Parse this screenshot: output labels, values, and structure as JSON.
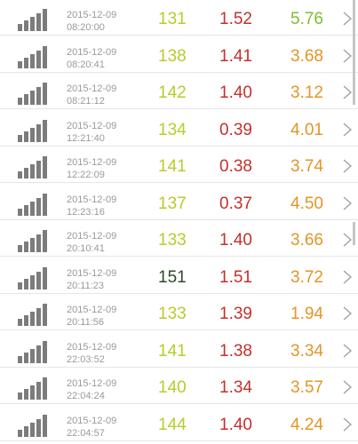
{
  "colors": {
    "lime": "#b8cc2a",
    "dark_green": "#2f4a2a",
    "red": "#c4302b",
    "orange": "#e39525",
    "green": "#7cbf2f",
    "bars": "#7c7c7c",
    "divider": "#e6e6e6"
  },
  "rows": [
    {
      "date": "2015-12-09",
      "time": "08:20:00",
      "v1": "131",
      "v1_color": "lime",
      "v2": "1.52",
      "v2_color": "red",
      "v3": "5.76",
      "v3_color": "green"
    },
    {
      "date": "2015-12-09",
      "time": "08:20:41",
      "v1": "138",
      "v1_color": "lime",
      "v2": "1.41",
      "v2_color": "red",
      "v3": "3.68",
      "v3_color": "orange"
    },
    {
      "date": "2015-12-09",
      "time": "08:21:12",
      "v1": "142",
      "v1_color": "lime",
      "v2": "1.40",
      "v2_color": "red",
      "v3": "3.12",
      "v3_color": "orange"
    },
    {
      "date": "2015-12-09",
      "time": "12:21:40",
      "v1": "134",
      "v1_color": "lime",
      "v2": "0.39",
      "v2_color": "red",
      "v3": "4.01",
      "v3_color": "orange"
    },
    {
      "date": "2015-12-09",
      "time": "12:22:09",
      "v1": "141",
      "v1_color": "lime",
      "v2": "0.38",
      "v2_color": "red",
      "v3": "3.74",
      "v3_color": "orange"
    },
    {
      "date": "2015-12-09",
      "time": "12:23:16",
      "v1": "137",
      "v1_color": "lime",
      "v2": "0.37",
      "v2_color": "red",
      "v3": "4.50",
      "v3_color": "orange"
    },
    {
      "date": "2015-12-09",
      "time": "20:10:41",
      "v1": "133",
      "v1_color": "lime",
      "v2": "1.40",
      "v2_color": "red",
      "v3": "3.66",
      "v3_color": "orange"
    },
    {
      "date": "2015-12-09",
      "time": "20:11:23",
      "v1": "151",
      "v1_color": "dark_green",
      "v2": "1.51",
      "v2_color": "red",
      "v3": "3.72",
      "v3_color": "orange"
    },
    {
      "date": "2015-12-09",
      "time": "20:11:56",
      "v1": "133",
      "v1_color": "lime",
      "v2": "1.39",
      "v2_color": "red",
      "v3": "1.94",
      "v3_color": "orange"
    },
    {
      "date": "2015-12-09",
      "time": "22:03:52",
      "v1": "141",
      "v1_color": "lime",
      "v2": "1.38",
      "v2_color": "red",
      "v3": "3.34",
      "v3_color": "orange"
    },
    {
      "date": "2015-12-09",
      "time": "22:04:24",
      "v1": "140",
      "v1_color": "lime",
      "v2": "1.34",
      "v2_color": "red",
      "v3": "3.57",
      "v3_color": "orange"
    },
    {
      "date": "2015-12-09",
      "time": "22:04:57",
      "v1": "144",
      "v1_color": "lime",
      "v2": "1.40",
      "v2_color": "red",
      "v3": "4.24",
      "v3_color": "orange"
    }
  ]
}
